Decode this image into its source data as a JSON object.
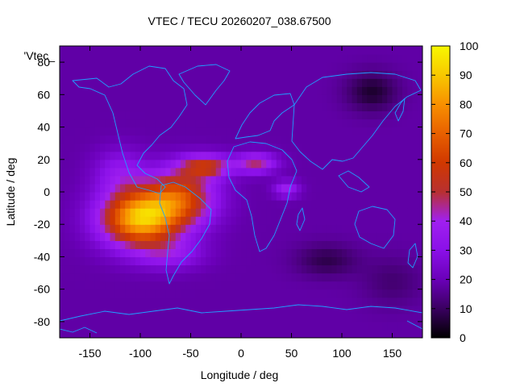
{
  "chart_data": {
    "type": "heatmap",
    "title": "VTEC / TECU 20260207_038.67500",
    "xlabel": "Longitude / deg",
    "ylabel": "Latitude / deg",
    "key_label": "'Vtec_",
    "xlim": [
      -180,
      180
    ],
    "ylim": [
      -90,
      90
    ],
    "x_ticks": [
      -150,
      -100,
      -50,
      0,
      50,
      100,
      150
    ],
    "y_ticks": [
      -80,
      -60,
      -40,
      -20,
      0,
      20,
      40,
      60,
      80
    ],
    "colorbar": {
      "range": [
        0,
        100
      ],
      "ticks": [
        0,
        10,
        20,
        30,
        40,
        50,
        60,
        70,
        80,
        90,
        100
      ]
    },
    "grid": false,
    "overlay": "coastlines",
    "field": {
      "background": 18,
      "features": [
        {
          "lon": -100,
          "lat": -16,
          "amp": 70,
          "slon": 38,
          "slat": 17
        },
        {
          "lon": -60,
          "lat": -3,
          "amp": 42,
          "slon": 34,
          "slat": 17
        },
        {
          "lon": -35,
          "lat": 16,
          "amp": 35,
          "slon": 25,
          "slat": 7
        },
        {
          "lon": 15,
          "lat": 18,
          "amp": 28,
          "slon": 20,
          "slat": 6
        },
        {
          "lon": 45,
          "lat": 2,
          "amp": 20,
          "slon": 12,
          "slat": 5
        },
        {
          "lon": -120,
          "lat": 12,
          "amp": 15,
          "slon": 25,
          "slat": 14
        },
        {
          "lon": -70,
          "lat": -38,
          "amp": 15,
          "slon": 32,
          "slat": 9
        },
        {
          "lon": 130,
          "lat": 62,
          "amp": -13,
          "slon": 25,
          "slat": 12
        },
        {
          "lon": 85,
          "lat": -42,
          "amp": -10,
          "slon": 30,
          "slat": 10
        },
        {
          "lon": 150,
          "lat": -55,
          "amp": -6,
          "slon": 30,
          "slat": 15
        }
      ]
    }
  },
  "colors": {
    "palette": [
      "#000000",
      "#3a0060",
      "#6a00b8",
      "#8a10e8",
      "#a020f0",
      "#b83030",
      "#d03800",
      "#e86000",
      "#f89000",
      "#f8c800",
      "#f8f800"
    ],
    "coastline": "#20a0ff"
  }
}
